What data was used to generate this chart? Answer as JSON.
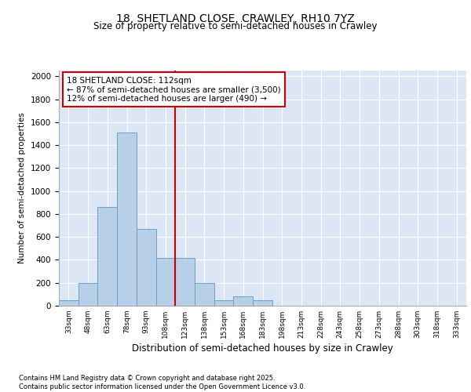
{
  "title1": "18, SHETLAND CLOSE, CRAWLEY, RH10 7YZ",
  "title2": "Size of property relative to semi-detached houses in Crawley",
  "xlabel": "Distribution of semi-detached houses by size in Crawley",
  "ylabel": "Number of semi-detached properties",
  "categories": [
    "33sqm",
    "48sqm",
    "63sqm",
    "78sqm",
    "93sqm",
    "108sqm",
    "123sqm",
    "138sqm",
    "153sqm",
    "168sqm",
    "183sqm",
    "198sqm",
    "213sqm",
    "228sqm",
    "243sqm",
    "258sqm",
    "273sqm",
    "288sqm",
    "303sqm",
    "318sqm",
    "333sqm"
  ],
  "values": [
    50,
    200,
    860,
    1510,
    670,
    415,
    415,
    200,
    50,
    80,
    50,
    0,
    0,
    0,
    0,
    0,
    0,
    0,
    0,
    0,
    0
  ],
  "bar_color": "#b8cfe8",
  "bar_edge_color": "#6aa0c8",
  "vline_color": "#cc0000",
  "annotation_box_text": "18 SHETLAND CLOSE: 112sqm\n← 87% of semi-detached houses are smaller (3,500)\n12% of semi-detached houses are larger (490) →",
  "annotation_box_color": "#cc0000",
  "ylim": [
    0,
    2050
  ],
  "yticks": [
    0,
    200,
    400,
    600,
    800,
    1000,
    1200,
    1400,
    1600,
    1800,
    2000
  ],
  "background_color": "#dce6f5",
  "grid_color": "#ffffff",
  "footer": "Contains HM Land Registry data © Crown copyright and database right 2025.\nContains public sector information licensed under the Open Government Licence v3.0."
}
